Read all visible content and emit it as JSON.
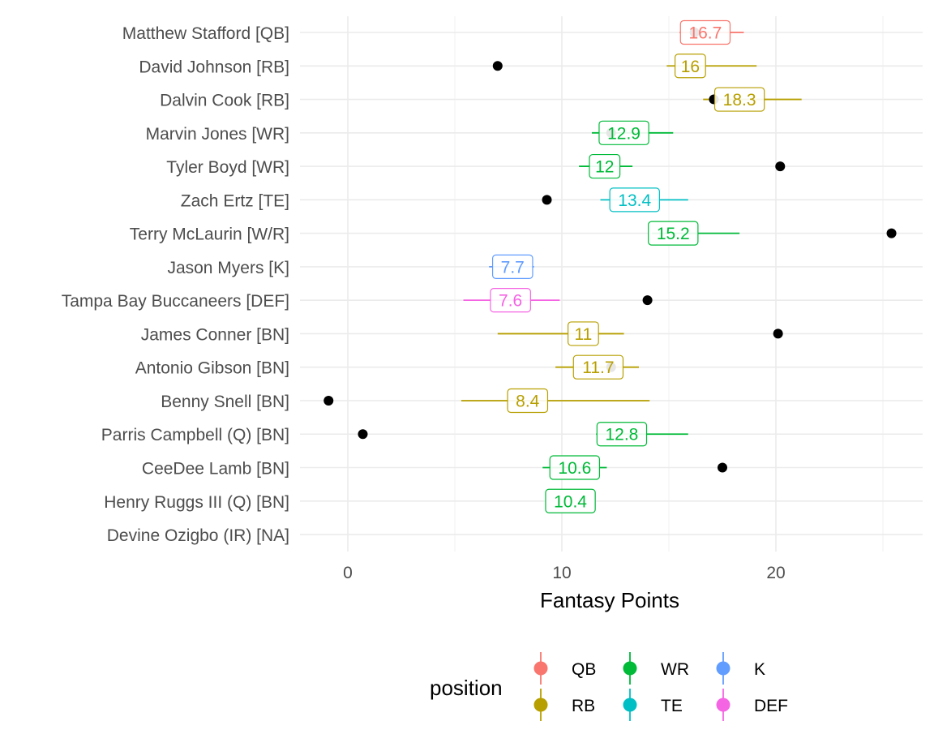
{
  "chart_data": {
    "type": "pointrange",
    "xlabel": "Fantasy Points",
    "x_ticks": [
      0,
      10,
      20
    ],
    "xlim": [
      -2.6,
      26.8
    ],
    "grid": true,
    "legend": {
      "title": "position",
      "placement": "bottom",
      "entries": [
        {
          "label": "QB",
          "color": "#F8766D"
        },
        {
          "label": "RB",
          "color": "#B79F00"
        },
        {
          "label": "WR",
          "color": "#00BA38"
        },
        {
          "label": "TE",
          "color": "#00BFC4"
        },
        {
          "label": "K",
          "color": "#619CFF"
        },
        {
          "label": "DEF",
          "color": "#F564E3"
        }
      ]
    },
    "players": [
      {
        "name": "Matthew Stafford [QB]",
        "position": "QB",
        "low": 15.5,
        "high": 18.5,
        "projection": 16.7,
        "label": "16.7",
        "actual": 16.2
      },
      {
        "name": "David Johnson [RB]",
        "position": "RB",
        "low": 14.9,
        "high": 19.1,
        "projection": 16.0,
        "label": "16",
        "actual": 7.0
      },
      {
        "name": "Dalvin Cook [RB]",
        "position": "RB",
        "low": 16.6,
        "high": 21.2,
        "projection": 18.3,
        "label": "18.3",
        "actual": 17.1
      },
      {
        "name": "Marvin Jones [WR]",
        "position": "WR",
        "low": 11.4,
        "high": 15.2,
        "projection": 12.9,
        "label": "12.9",
        "actual": 12.3
      },
      {
        "name": "Tyler Boyd [WR]",
        "position": "WR",
        "low": 10.8,
        "high": 13.3,
        "projection": 12.0,
        "label": "12",
        "actual": 20.2
      },
      {
        "name": "Zach Ertz [TE]",
        "position": "TE",
        "low": 11.8,
        "high": 15.9,
        "projection": 13.4,
        "label": "13.4",
        "actual": 9.3
      },
      {
        "name": "Terry McLaurin [W/R]",
        "position": "WR",
        "low": 14.2,
        "high": 18.3,
        "projection": 15.2,
        "label": "15.2",
        "actual": 25.4
      },
      {
        "name": "Jason Myers [K]",
        "position": "K",
        "low": 6.6,
        "high": 8.7,
        "projection": 7.7,
        "label": "7.7",
        "actual": null
      },
      {
        "name": "Tampa Bay Buccaneers [DEF]",
        "position": "DEF",
        "low": 5.4,
        "high": 9.9,
        "projection": 7.6,
        "label": "7.6",
        "actual": 14.0
      },
      {
        "name": "James Conner [BN]",
        "position": "RB",
        "low": 7.0,
        "high": 12.9,
        "projection": 11.0,
        "label": "11",
        "actual": 20.1
      },
      {
        "name": "Antonio Gibson [BN]",
        "position": "RB",
        "low": 9.7,
        "high": 13.6,
        "projection": 11.7,
        "label": "11.7",
        "actual": 12.3
      },
      {
        "name": "Benny Snell [BN]",
        "position": "RB",
        "low": 5.3,
        "high": 14.1,
        "projection": 8.4,
        "label": "8.4",
        "actual": -0.9
      },
      {
        "name": "Parris Campbell (Q) [BN]",
        "position": "WR",
        "low": 11.6,
        "high": 15.9,
        "projection": 12.8,
        "label": "12.8",
        "actual": 0.7
      },
      {
        "name": "CeeDee Lamb [BN]",
        "position": "WR",
        "low": 9.1,
        "high": 12.1,
        "projection": 10.6,
        "label": "10.6",
        "actual": 17.5
      },
      {
        "name": "Henry Ruggs III (Q) [BN]",
        "position": "WR",
        "low": null,
        "high": null,
        "projection": 10.4,
        "label": "10.4",
        "actual": null
      },
      {
        "name": "Devine Ozigbo (IR) [NA]",
        "position": null,
        "low": null,
        "high": null,
        "projection": null,
        "label": null,
        "actual": null
      }
    ]
  }
}
